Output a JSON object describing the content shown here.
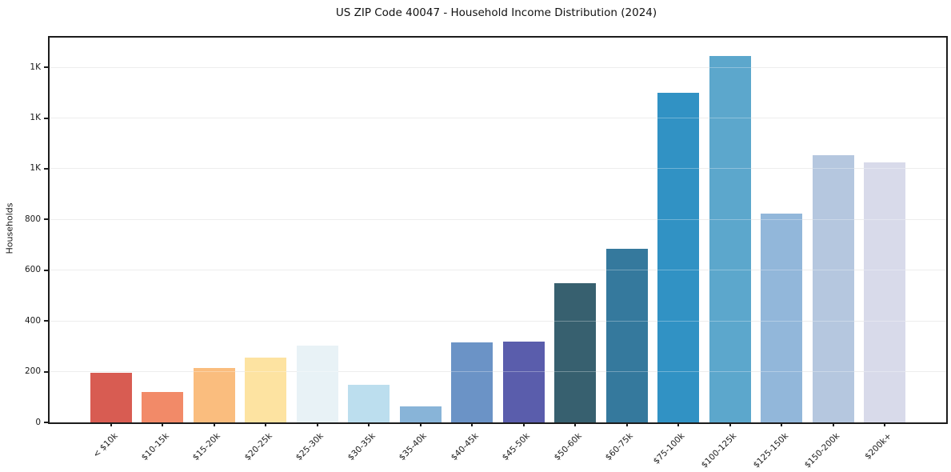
{
  "figure": {
    "background": "#ffffff"
  },
  "chart_data": {
    "type": "bar",
    "title": "US ZIP Code 40047 - Household Income Distribution (2024)",
    "xlabel": "",
    "ylabel": "Households",
    "categories": [
      "< $10k",
      "$10-15k",
      "$15-20k",
      "$20-25k",
      "$25-30k",
      "$30-35k",
      "$35-40k",
      "$40-45k",
      "$45-50k",
      "$50-60k",
      "$60-75k",
      "$75-100k",
      "$100-125k",
      "$125-150k",
      "$150-200k",
      "$200k+"
    ],
    "values": [
      195,
      120,
      214,
      255,
      302,
      147,
      62,
      314,
      318,
      548,
      686,
      1300,
      1445,
      822,
      1055,
      1026
    ],
    "bar_colors": [
      "#d85c52",
      "#f28a68",
      "#fabd7e",
      "#fde3a1",
      "#e8f2f6",
      "#bcdeee",
      "#88b4d8",
      "#6b93c6",
      "#5a5dac",
      "#37606f",
      "#35799d",
      "#3192c4",
      "#5ca7cc",
      "#92b7da",
      "#b5c7df",
      "#d8daea"
    ],
    "ylim": [
      0,
      1517
    ],
    "xlim": [
      -1.19,
      16.19
    ],
    "bar_width": 0.8,
    "yticks": [
      {
        "value": 0,
        "label": "0"
      },
      {
        "value": 200,
        "label": "200"
      },
      {
        "value": 400,
        "label": "400"
      },
      {
        "value": 600,
        "label": "600"
      },
      {
        "value": 800,
        "label": "800"
      },
      {
        "value": 1000,
        "label": "1K"
      },
      {
        "value": 1200,
        "label": "1K"
      },
      {
        "value": 1400,
        "label": "1K"
      }
    ],
    "grid": "horizontal",
    "gridline_color": "#e6e6e6",
    "gridline_over_bars_color": "rgba(255,255,255,0.3)",
    "spine_color": "#1c1c1c",
    "text_color": "#1a1a1a",
    "legend": "none"
  }
}
